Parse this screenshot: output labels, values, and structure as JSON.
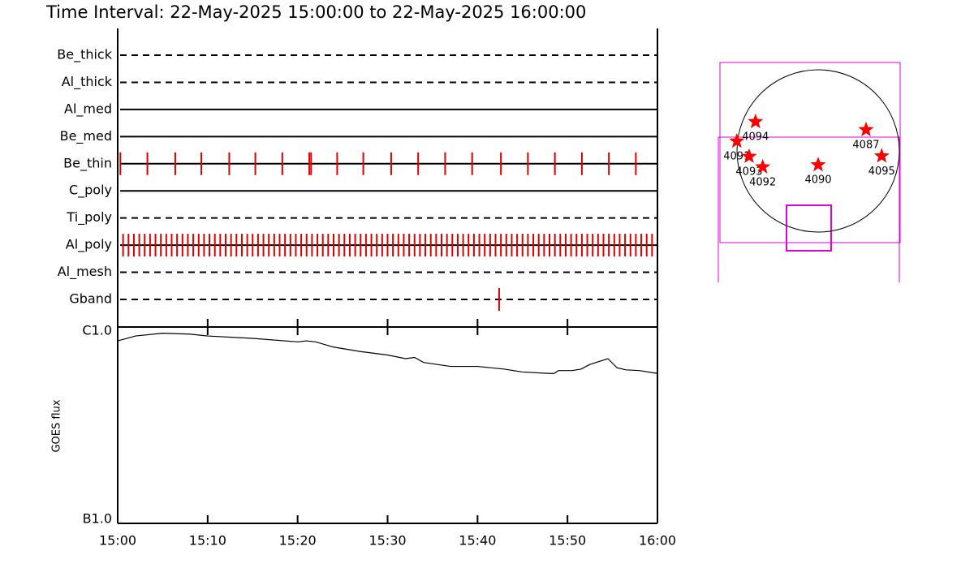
{
  "chart_data": [
    {
      "type": "event",
      "title": "Time Interval: 22-May-2025 15:00:00 to 22-May-2025 16:00:00",
      "xlim": [
        0,
        60
      ],
      "color": "#dd0000",
      "rows": [
        {
          "name": "Be_thick",
          "style": "dashed",
          "values": []
        },
        {
          "name": "Al_thick",
          "style": "dashed",
          "values": []
        },
        {
          "name": "Al_med",
          "style": "solid",
          "values": []
        },
        {
          "name": "Be_med",
          "style": "solid",
          "values": []
        },
        {
          "name": "Be_thin",
          "style": "solid",
          "values": [
            0.3,
            3.3,
            6.4,
            9.3,
            12.4,
            15.3,
            18.3,
            21.3,
            21.5,
            24.4,
            27.3,
            30.4,
            33.4,
            36.4,
            39.4,
            42.6,
            45.6,
            48.6,
            51.6,
            54.6,
            57.6
          ]
        },
        {
          "name": "C_poly",
          "style": "solid",
          "values": []
        },
        {
          "name": "Ti_poly",
          "style": "dashed",
          "values": []
        },
        {
          "name": "Al_poly",
          "style": "solid",
          "values": [
            0.6,
            1.2,
            1.8,
            2.4,
            3,
            3.6,
            4.2,
            4.8,
            5.4,
            6,
            6.6,
            7.2,
            7.8,
            8.4,
            9,
            9.6,
            10.2,
            10.8,
            11.4,
            12,
            12.6,
            13.2,
            13.8,
            14.4,
            15,
            15.6,
            16.2,
            16.8,
            17.4,
            18,
            18.6,
            19.2,
            19.8,
            20.4,
            21,
            21.6,
            22.2,
            22.8,
            23.4,
            24,
            24.6,
            25.2,
            25.8,
            26.4,
            27,
            27.6,
            28.2,
            28.8,
            29.4,
            30,
            30.6,
            31.2,
            31.8,
            32.4,
            33,
            33.6,
            34.2,
            34.8,
            35.4,
            36,
            36.6,
            37.2,
            37.8,
            38.4,
            39,
            39.6,
            40.2,
            40.8,
            41.4,
            42,
            42.6,
            43.2,
            43.8,
            44.4,
            45,
            45.6,
            46.2,
            46.8,
            47.4,
            48,
            48.6,
            49.2,
            49.8,
            50.4,
            51,
            51.6,
            52.2,
            52.8,
            53.4,
            54,
            54.6,
            55.2,
            55.8,
            56.4,
            57,
            57.6,
            58.2,
            58.8,
            59.4
          ]
        },
        {
          "name": "Al_mesh",
          "style": "dashed",
          "values": []
        },
        {
          "name": "Gband",
          "style": "dashed",
          "values": [
            42.4
          ]
        }
      ]
    },
    {
      "type": "line",
      "ylabel": "GOES flux",
      "color": "#000000",
      "log": true,
      "xlim": [
        0,
        60
      ],
      "xticks": [
        {
          "value": 0,
          "label": "15:00"
        },
        {
          "value": 10,
          "label": "15:10"
        },
        {
          "value": 20,
          "label": "15:20"
        },
        {
          "value": 30,
          "label": "15:30"
        },
        {
          "value": 40,
          "label": "15:40"
        },
        {
          "value": 50,
          "label": "15:50"
        },
        {
          "value": 60,
          "label": "16:00"
        }
      ],
      "ylim": [
        1e-07,
        1e-06
      ],
      "yticks": [
        {
          "value": 1e-07,
          "label": "B1.0"
        },
        {
          "value": 1e-06,
          "label": "C1.0"
        }
      ],
      "x": [
        0,
        2,
        5,
        8,
        10,
        15,
        20,
        21,
        22,
        24,
        27,
        30,
        32,
        33,
        34,
        37,
        40,
        43,
        45,
        48,
        48.5,
        49,
        50.5,
        51.5,
        52.5,
        54.5,
        55.5,
        56.5,
        58,
        60
      ],
      "values": [
        8.5e-07,
        9e-07,
        9.3e-07,
        9.2e-07,
        9e-07,
        8.75e-07,
        8.4e-07,
        8.5e-07,
        8.4e-07,
        7.9e-07,
        7.5e-07,
        7.2e-07,
        6.9e-07,
        7e-07,
        6.6e-07,
        6.3e-07,
        6.3e-07,
        6.1e-07,
        5.9e-07,
        5.8e-07,
        5.8e-07,
        6e-07,
        6e-07,
        6.1e-07,
        6.45e-07,
        6.9e-07,
        6.2e-07,
        6.05e-07,
        6e-07,
        5.8e-07
      ]
    },
    {
      "type": "scatter",
      "color": "#ff0000",
      "xlim": [
        -1150,
        1150
      ],
      "ylim": [
        -1150,
        1150
      ],
      "x": [
        -740,
        -960,
        -815,
        -655,
        0,
        565,
        750
      ],
      "values": [
        345,
        115,
        -65,
        -190,
        -165,
        250,
        -60
      ],
      "labels": [
        "4094",
        "4091",
        "4093",
        "4092",
        "4090",
        "4087",
        "4095"
      ]
    }
  ]
}
